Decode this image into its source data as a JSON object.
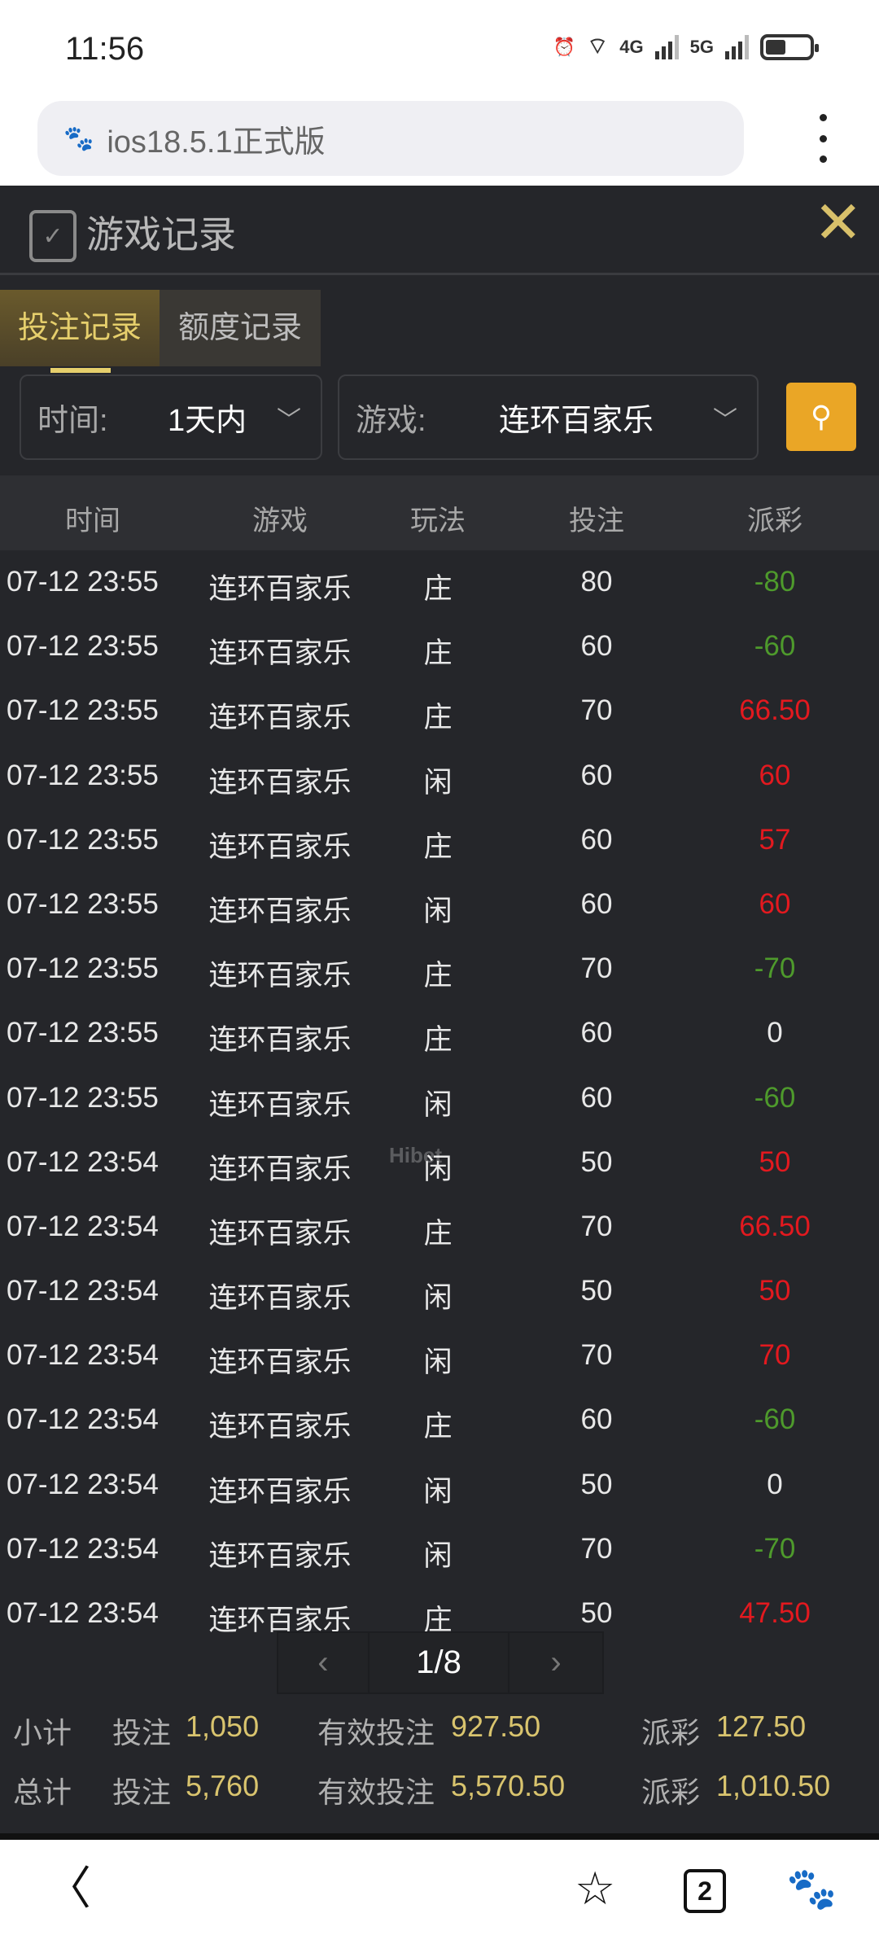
{
  "status": {
    "time": "11:56",
    "net1": "4G",
    "net2": "5G"
  },
  "browser": {
    "url": "ios18.5.1正式版",
    "tab_count": "2"
  },
  "panel": {
    "title": "游戏记录",
    "close": "✕",
    "watermark": "Hibet"
  },
  "tabs": [
    {
      "label": "投注记录",
      "active": true
    },
    {
      "label": "额度记录",
      "active": false
    }
  ],
  "filters": {
    "time_label": "时间:",
    "time_value": "1天内",
    "game_label": "游戏:",
    "game_value": "连环百家乐"
  },
  "columns": [
    "时间",
    "游戏",
    "玩法",
    "投注",
    "派彩"
  ],
  "rows": [
    [
      "07-12 23:55",
      "连环百家乐",
      "庄",
      "80",
      "-80"
    ],
    [
      "07-12 23:55",
      "连环百家乐",
      "庄",
      "60",
      "-60"
    ],
    [
      "07-12 23:55",
      "连环百家乐",
      "庄",
      "70",
      "66.50"
    ],
    [
      "07-12 23:55",
      "连环百家乐",
      "闲",
      "60",
      "60"
    ],
    [
      "07-12 23:55",
      "连环百家乐",
      "庄",
      "60",
      "57"
    ],
    [
      "07-12 23:55",
      "连环百家乐",
      "闲",
      "60",
      "60"
    ],
    [
      "07-12 23:55",
      "连环百家乐",
      "庄",
      "70",
      "-70"
    ],
    [
      "07-12 23:55",
      "连环百家乐",
      "庄",
      "60",
      "0"
    ],
    [
      "07-12 23:55",
      "连环百家乐",
      "闲",
      "60",
      "-60"
    ],
    [
      "07-12 23:54",
      "连环百家乐",
      "闲",
      "50",
      "50"
    ],
    [
      "07-12 23:54",
      "连环百家乐",
      "庄",
      "70",
      "66.50"
    ],
    [
      "07-12 23:54",
      "连环百家乐",
      "闲",
      "50",
      "50"
    ],
    [
      "07-12 23:54",
      "连环百家乐",
      "闲",
      "70",
      "70"
    ],
    [
      "07-12 23:54",
      "连环百家乐",
      "庄",
      "60",
      "-60"
    ],
    [
      "07-12 23:54",
      "连环百家乐",
      "闲",
      "50",
      "0"
    ],
    [
      "07-12 23:54",
      "连环百家乐",
      "闲",
      "70",
      "-70"
    ],
    [
      "07-12 23:54",
      "连环百家乐",
      "庄",
      "50",
      "47.50"
    ]
  ],
  "colors": {
    "win": "#e3191f",
    "loss": "#4e9a2c",
    "zero": "#e8e8e8",
    "accent": "#d9c46e",
    "search": "#eaa626"
  },
  "pagination": {
    "prev": "‹",
    "page": "1/8",
    "next": "›"
  },
  "subtotal": {
    "label": "小计",
    "bet_label": "投注",
    "bet": "1,050",
    "valid_label": "有效投注",
    "valid": "927.50",
    "payout_label": "派彩",
    "payout": "127.50"
  },
  "total": {
    "label": "总计",
    "bet_label": "投注",
    "bet": "5,760",
    "valid_label": "有效投注",
    "valid": "5,570.50",
    "payout_label": "派彩",
    "payout": "1,010.50"
  }
}
